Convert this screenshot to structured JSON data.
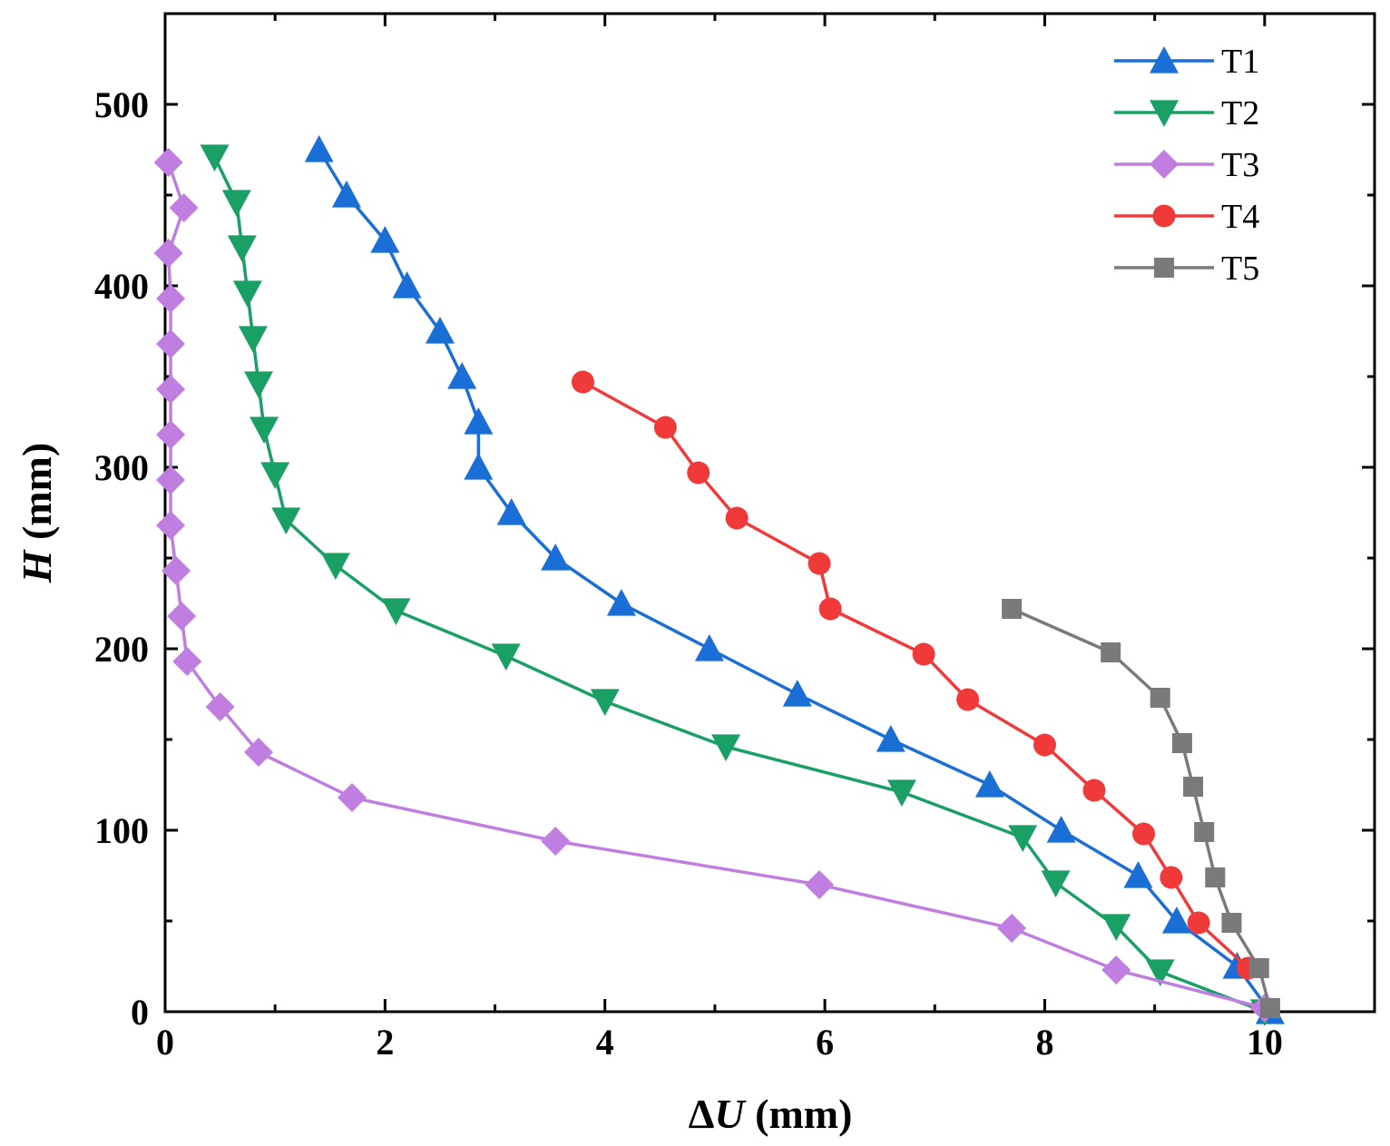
{
  "chart_data": {
    "type": "line",
    "title": "",
    "xlabel": "ΔU (mm)",
    "xlabel_parts": {
      "symbol": "Δ",
      "var": "U",
      "unit": " (mm)"
    },
    "ylabel": "H (mm)",
    "ylabel_parts": {
      "var": "H",
      "unit": " (mm)"
    },
    "xlim": [
      0,
      11
    ],
    "ylim": [
      0,
      550
    ],
    "xticks": [
      0,
      2,
      4,
      6,
      8,
      10
    ],
    "yticks": [
      0,
      100,
      200,
      300,
      400,
      500
    ],
    "xtick_labels": [
      "0",
      "2",
      "4",
      "6",
      "8",
      "10"
    ],
    "ytick_labels": [
      "0",
      "100",
      "200",
      "300",
      "400",
      "500"
    ],
    "grid": false,
    "legend_position": "top-right",
    "series": [
      {
        "name": "T1",
        "color": "#1a6fd6",
        "marker": "triangle-up",
        "points": [
          [
            10.05,
            0
          ],
          [
            9.75,
            25
          ],
          [
            9.2,
            50
          ],
          [
            8.85,
            75
          ],
          [
            8.15,
            100
          ],
          [
            7.5,
            125
          ],
          [
            6.6,
            150
          ],
          [
            5.75,
            175
          ],
          [
            4.95,
            200
          ],
          [
            4.15,
            225
          ],
          [
            3.55,
            250
          ],
          [
            3.15,
            275
          ],
          [
            2.85,
            300
          ],
          [
            2.85,
            325
          ],
          [
            2.7,
            350
          ],
          [
            2.5,
            375
          ],
          [
            2.2,
            400
          ],
          [
            2.0,
            425
          ],
          [
            1.65,
            450
          ],
          [
            1.4,
            475
          ]
        ]
      },
      {
        "name": "T2",
        "color": "#1aa064",
        "marker": "triangle-down",
        "points": [
          [
            10.0,
            0
          ],
          [
            9.05,
            22
          ],
          [
            8.65,
            47
          ],
          [
            8.1,
            71
          ],
          [
            7.8,
            96
          ],
          [
            6.7,
            121
          ],
          [
            5.1,
            146
          ],
          [
            4.0,
            171
          ],
          [
            3.1,
            196
          ],
          [
            2.1,
            221
          ],
          [
            1.55,
            246
          ],
          [
            1.1,
            271
          ],
          [
            1.0,
            296
          ],
          [
            0.9,
            321
          ],
          [
            0.85,
            346
          ],
          [
            0.8,
            371
          ],
          [
            0.75,
            396
          ],
          [
            0.7,
            421
          ],
          [
            0.65,
            446
          ],
          [
            0.45,
            471
          ]
        ]
      },
      {
        "name": "T3",
        "color": "#c07ee0",
        "marker": "diamond",
        "points": [
          [
            10.0,
            2
          ],
          [
            8.65,
            23
          ],
          [
            7.7,
            46
          ],
          [
            5.95,
            70
          ],
          [
            3.55,
            94
          ],
          [
            1.7,
            118
          ],
          [
            0.85,
            143
          ],
          [
            0.5,
            168
          ],
          [
            0.2,
            193
          ],
          [
            0.15,
            218
          ],
          [
            0.1,
            243
          ],
          [
            0.05,
            268
          ],
          [
            0.05,
            293
          ],
          [
            0.05,
            318
          ],
          [
            0.05,
            343
          ],
          [
            0.05,
            368
          ],
          [
            0.05,
            393
          ],
          [
            0.03,
            418
          ],
          [
            0.17,
            443
          ],
          [
            0.03,
            468
          ]
        ]
      },
      {
        "name": "T4",
        "color": "#f03a3a",
        "marker": "circle",
        "points": [
          [
            9.85,
            24
          ],
          [
            9.4,
            49
          ],
          [
            9.15,
            74
          ],
          [
            8.9,
            98
          ],
          [
            8.45,
            122
          ],
          [
            8.0,
            147
          ],
          [
            7.3,
            172
          ],
          [
            6.9,
            197
          ],
          [
            6.05,
            222
          ],
          [
            5.95,
            247
          ],
          [
            5.2,
            272
          ],
          [
            4.85,
            297
          ],
          [
            4.55,
            322
          ],
          [
            3.8,
            347
          ]
        ]
      },
      {
        "name": "T5",
        "color": "#7a7a7a",
        "marker": "square",
        "points": [
          [
            10.05,
            2
          ],
          [
            9.95,
            24
          ],
          [
            9.7,
            49
          ],
          [
            9.55,
            74
          ],
          [
            9.45,
            99
          ],
          [
            9.35,
            124
          ],
          [
            9.25,
            148
          ],
          [
            9.05,
            173
          ],
          [
            8.6,
            198
          ],
          [
            7.7,
            222
          ]
        ]
      }
    ]
  }
}
